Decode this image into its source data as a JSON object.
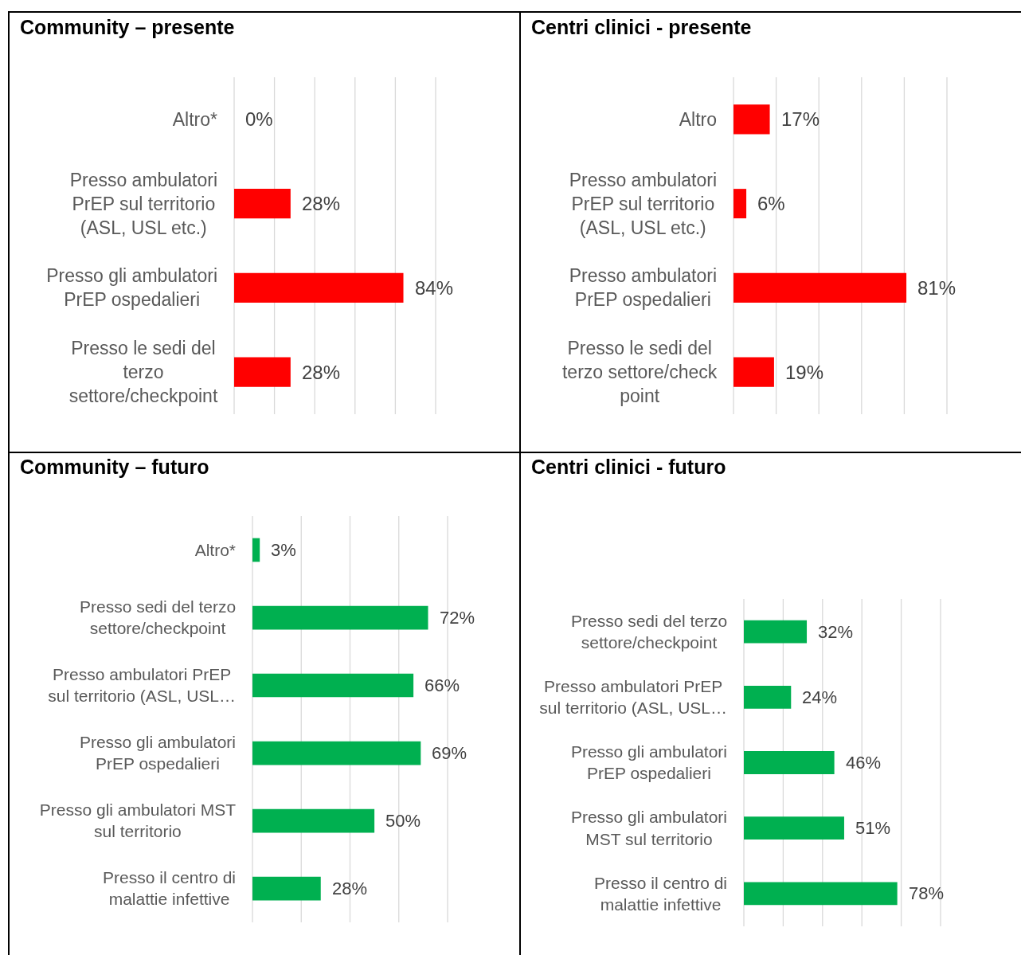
{
  "chart_data": [
    {
      "type": "bar",
      "title": "Community – presente",
      "orientation": "horizontal",
      "categories": [
        "Altro*",
        "Presso ambulatori\nPrEP sul territorio\n(ASL, USL etc.)",
        "Presso gli ambulatori\nPrEP ospedalieri",
        "Presso le sedi del\nterzo\nsettore/checkpoint"
      ],
      "values": [
        0,
        28,
        84,
        28
      ],
      "value_labels": [
        "0%",
        "28%",
        "84%",
        "28%"
      ],
      "color": "#ff0000",
      "xlim": [
        0,
        100
      ],
      "xticks": [
        {
          "value": 0,
          "label": null
        },
        {
          "value": 20,
          "label": null
        },
        {
          "value": 40,
          "label": null
        },
        {
          "value": 60,
          "label": null
        },
        {
          "value": 80,
          "label": null
        },
        {
          "value": 100,
          "label": null
        }
      ],
      "grid": "x",
      "tick_labels": "y"
    },
    {
      "type": "bar",
      "title": "Centri clinici - presente",
      "orientation": "horizontal",
      "categories": [
        "Altro",
        "Presso ambulatori\nPrEP sul territorio\n(ASL, USL etc.)",
        "Presso ambulatori\nPrEP ospedalieri",
        "Presso le sedi del\nterzo settore/check\npoint"
      ],
      "values": [
        17,
        6,
        81,
        19
      ],
      "value_labels": [
        "17%",
        "6%",
        "81%",
        "19%"
      ],
      "color": "#ff0000",
      "xlim": [
        0,
        100
      ],
      "xticks": [
        {
          "value": 0,
          "label": null
        },
        {
          "value": 20,
          "label": null
        },
        {
          "value": 40,
          "label": null
        },
        {
          "value": 60,
          "label": null
        },
        {
          "value": 80,
          "label": null
        },
        {
          "value": 100,
          "label": null
        }
      ],
      "grid": "x",
      "tick_labels": "y"
    },
    {
      "type": "bar",
      "title": "Community – futuro",
      "orientation": "horizontal",
      "categories": [
        "Altro*",
        "Presso sedi del terzo\nsettore/checkpoint",
        "Presso ambulatori PrEP\nsul territorio (ASL, USL…",
        "Presso gli ambulatori\nPrEP ospedalieri",
        "Presso gli ambulatori MST\nsul territorio",
        "Presso il centro di\nmalattie infettive"
      ],
      "values": [
        3,
        72,
        66,
        69,
        50,
        28
      ],
      "value_labels": [
        "3%",
        "72%",
        "66%",
        "69%",
        "50%",
        "28%"
      ],
      "color": "#00b050",
      "xlim": [
        0,
        80
      ],
      "xticks": [
        {
          "value": 0,
          "label": null
        },
        {
          "value": 20,
          "label": null
        },
        {
          "value": 40,
          "label": null
        },
        {
          "value": 60,
          "label": null
        },
        {
          "value": 80,
          "label": null
        }
      ],
      "grid": "x",
      "tick_labels": "y"
    },
    {
      "type": "bar",
      "title": "Centri clinici - futuro",
      "orientation": "horizontal",
      "categories": [
        "Presso sedi del terzo\nsettore/checkpoint",
        "Presso ambulatori PrEP\nsul territorio (ASL, USL…",
        "Presso gli ambulatori\nPrEP ospedalieri",
        "Presso gli ambulatori\nMST sul territorio",
        "Presso il centro di\nmalattie infettive"
      ],
      "values": [
        32,
        24,
        46,
        51,
        78
      ],
      "value_labels": [
        "32%",
        "24%",
        "46%",
        "51%",
        "78%"
      ],
      "color": "#00b050",
      "xlim": [
        0,
        100
      ],
      "xticks": [
        {
          "value": 0,
          "label": null
        },
        {
          "value": 20,
          "label": null
        },
        {
          "value": 40,
          "label": null
        },
        {
          "value": 60,
          "label": null
        },
        {
          "value": 80,
          "label": null
        },
        {
          "value": 100,
          "label": null
        }
      ],
      "grid": "x",
      "tick_labels": "y"
    }
  ]
}
